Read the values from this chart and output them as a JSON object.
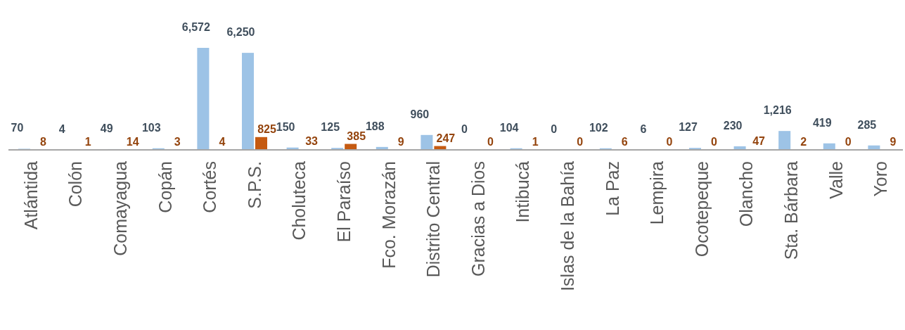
{
  "chart_data": {
    "type": "bar",
    "categories": [
      "Atlántida",
      "Colón",
      "Comayagua",
      "Copán",
      "Cortés",
      "S.P.S.",
      "Choluteca",
      "El Paraíso",
      "Fco. Morazán",
      "Distrito Central",
      "Gracias a Dios",
      "Intibucá",
      "Islas de la Bahía",
      "La Paz",
      "Lempira",
      "Ocotepeque",
      "Olancho",
      "Sta. Bárbara",
      "Valle",
      "Yoro"
    ],
    "series": [
      {
        "color": "#9dc3e6",
        "values": [
          70,
          4,
          49,
          103,
          6572,
          6250,
          150,
          125,
          188,
          960,
          0,
          104,
          0,
          102,
          6,
          127,
          230,
          1216,
          419,
          285
        ],
        "value_labels": [
          "70",
          "4",
          "49",
          "103",
          "6,572",
          "6,250",
          "150",
          "125",
          "188",
          "960",
          "0",
          "104",
          "0",
          "102",
          "6",
          "127",
          "230",
          "1,216",
          "419",
          "285"
        ]
      },
      {
        "color": "#c55a11",
        "values": [
          8,
          1,
          14,
          3,
          4,
          825,
          33,
          385,
          9,
          247,
          0,
          1,
          0,
          6,
          0,
          0,
          47,
          2,
          0,
          9
        ],
        "value_labels": [
          "8",
          "1",
          "14",
          "3",
          "4",
          "825",
          "33",
          "385",
          "9",
          "247",
          "0",
          "1",
          "0",
          "6",
          "0",
          "0",
          "47",
          "2",
          "0",
          "9"
        ]
      }
    ],
    "data_labels": true,
    "legend": false
  }
}
